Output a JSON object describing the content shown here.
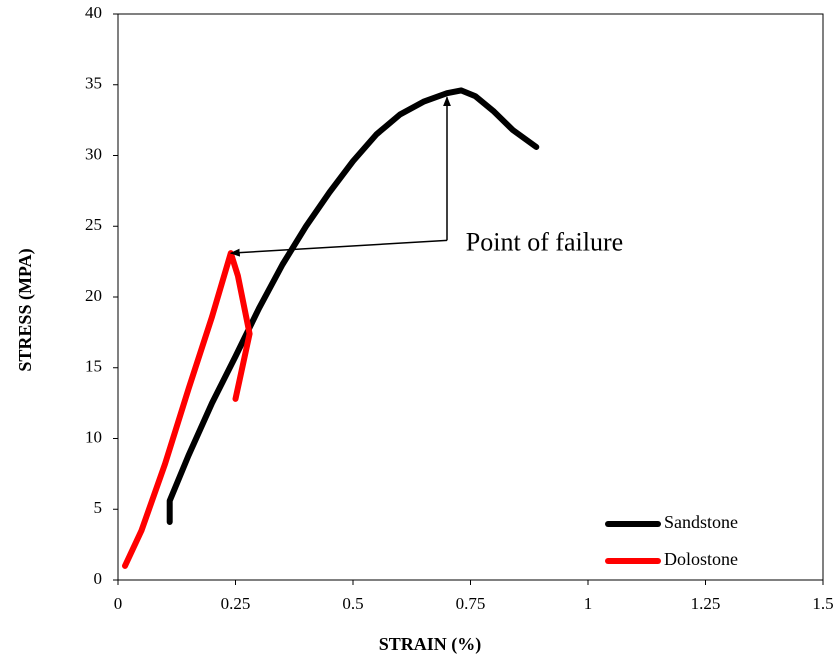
{
  "chart_data": {
    "type": "line",
    "xlabel": "STRAIN (%)",
    "ylabel": "STRESS (MPA)",
    "xlim": [
      0,
      1.5
    ],
    "ylim": [
      0,
      40
    ],
    "xticks": [
      0,
      0.25,
      0.5,
      0.75,
      1,
      1.25,
      1.5
    ],
    "xtick_labels": [
      "0",
      "0.25",
      "0.5",
      "0.75",
      "1",
      "1.25",
      "1.5"
    ],
    "yticks": [
      0,
      5,
      10,
      15,
      20,
      25,
      30,
      35,
      40
    ],
    "ytick_labels": [
      "0",
      "5",
      "10",
      "15",
      "20",
      "25",
      "30",
      "35",
      "40"
    ],
    "grid": false,
    "legend_position": "bottom-right",
    "series": [
      {
        "name": "Sandstone",
        "color": "#000000",
        "points": [
          [
            0.11,
            4.1
          ],
          [
            0.11,
            5.6
          ],
          [
            0.15,
            8.8
          ],
          [
            0.2,
            12.5
          ],
          [
            0.25,
            15.8
          ],
          [
            0.3,
            19.2
          ],
          [
            0.35,
            22.3
          ],
          [
            0.4,
            25.0
          ],
          [
            0.45,
            27.4
          ],
          [
            0.5,
            29.6
          ],
          [
            0.55,
            31.5
          ],
          [
            0.6,
            32.9
          ],
          [
            0.65,
            33.8
          ],
          [
            0.7,
            34.4
          ],
          [
            0.73,
            34.6
          ],
          [
            0.76,
            34.2
          ],
          [
            0.8,
            33.1
          ],
          [
            0.84,
            31.8
          ],
          [
            0.89,
            30.6
          ]
        ]
      },
      {
        "name": "Dolostone",
        "color": "#ff0000",
        "points": [
          [
            0.015,
            1.0
          ],
          [
            0.05,
            3.5
          ],
          [
            0.1,
            8.2
          ],
          [
            0.15,
            13.5
          ],
          [
            0.2,
            18.6
          ],
          [
            0.24,
            23.1
          ],
          [
            0.255,
            21.5
          ],
          [
            0.28,
            17.4
          ],
          [
            0.25,
            12.8
          ]
        ]
      }
    ],
    "annotations": [
      {
        "text": "Point of failure",
        "text_position": [
          0.74,
          23.7
        ],
        "bend": [
          0.7,
          24.0
        ],
        "arrow_targets": [
          [
            0.24,
            23.1
          ],
          [
            0.7,
            34.4
          ]
        ]
      }
    ]
  }
}
